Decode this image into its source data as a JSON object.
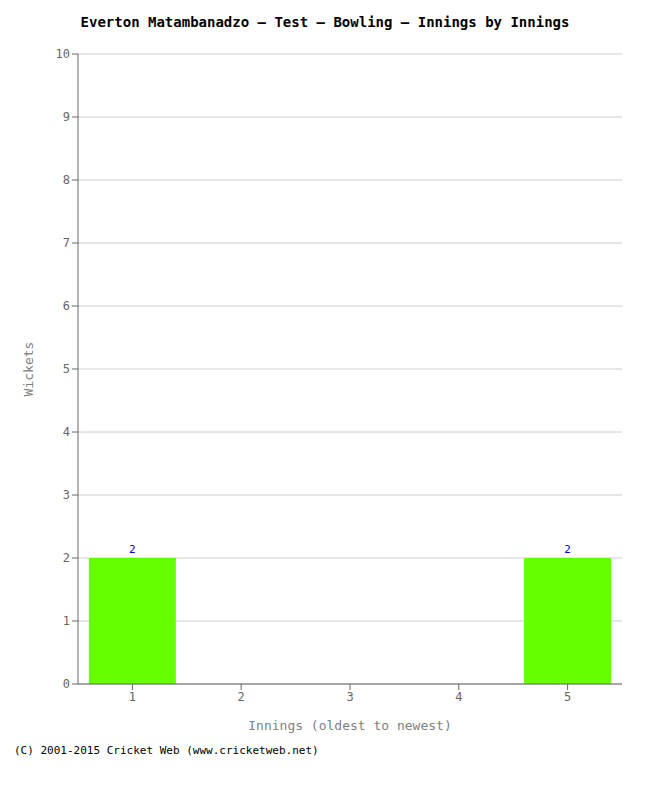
{
  "chart_data": {
    "type": "bar",
    "title": "Everton Matambanadzo – Test – Bowling – Innings by Innings",
    "xlabel": "Innings (oldest to newest)",
    "ylabel": "Wickets",
    "categories": [
      "1",
      "2",
      "3",
      "4",
      "5"
    ],
    "values": [
      2,
      0,
      0,
      0,
      2
    ],
    "color": "#66ff00",
    "ylim": [
      0,
      10
    ],
    "yticks": [
      0,
      1,
      2,
      3,
      4,
      5,
      6,
      7,
      8,
      9,
      10
    ],
    "grid": true,
    "data_labels": true,
    "annotations": [
      "(C) 2001-2015 Cricket Web (www.cricketweb.net)"
    ]
  }
}
